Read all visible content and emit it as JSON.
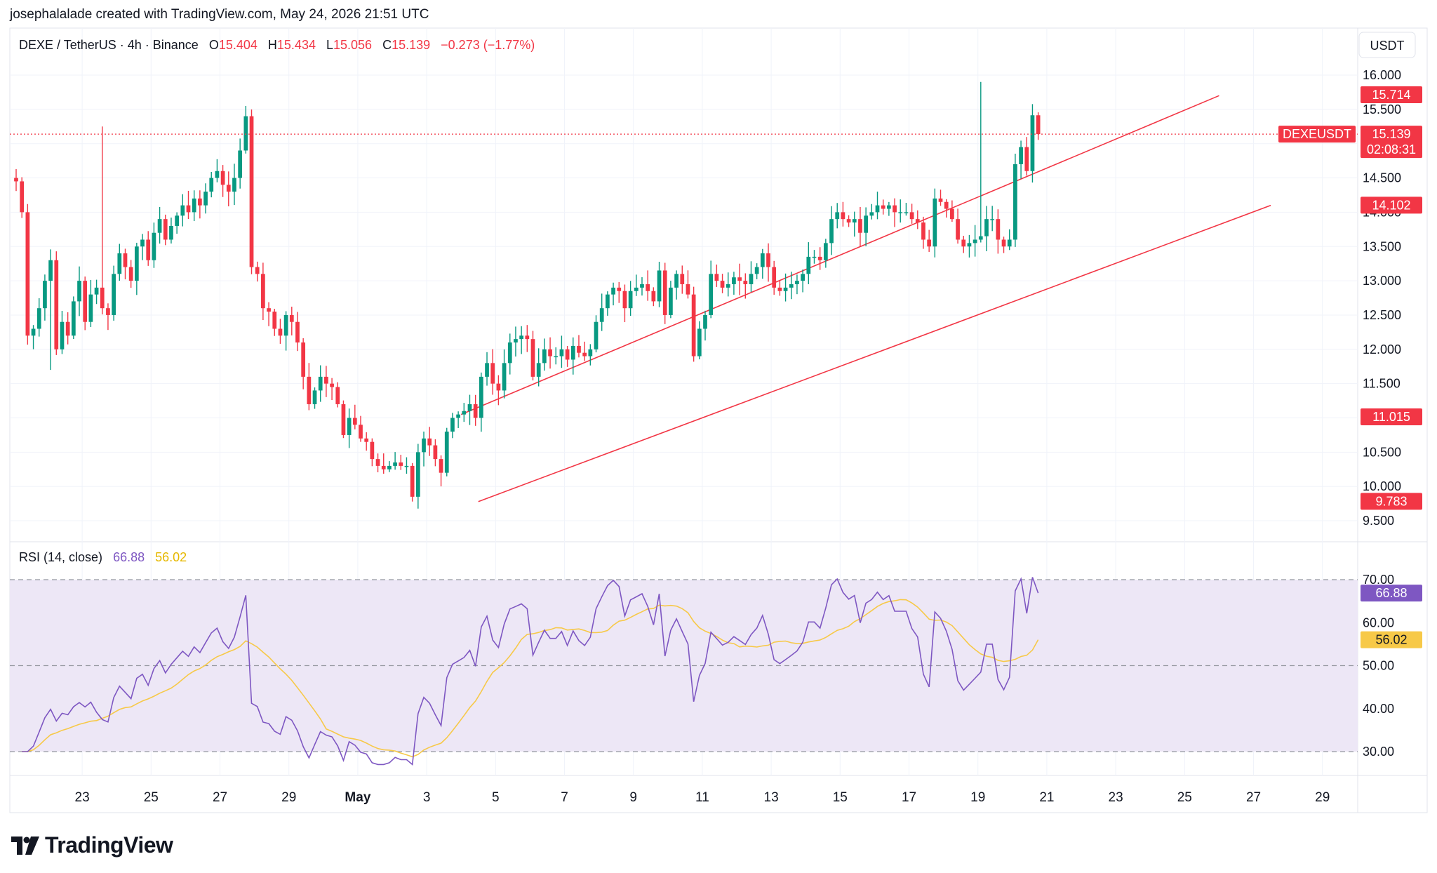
{
  "attribution": "josephalalade created with TradingView.com, May 24, 2026 21:51 UTC",
  "header": {
    "symbol": "DEXE / TetherUS · 4h · Binance",
    "o_label": "O",
    "o_value": "15.404",
    "h_label": "H",
    "h_value": "15.434",
    "l_label": "L",
    "l_value": "15.056",
    "c_label": "C",
    "c_value": "15.139",
    "change": "−0.273 (−1.77%)"
  },
  "currency": "USDT",
  "logo_text": "TradingView",
  "colors": {
    "up": "#089981",
    "down": "#f23645",
    "rsi": "#7e57c2",
    "rsi_ma": "#f7c948",
    "channel": "#f23645",
    "rsi_band": "#ede7f6"
  },
  "chart_data": [
    {
      "type": "candlestick",
      "title": "DEXE / TetherUS · 4h · Binance",
      "ylim": [
        9.25,
        16.25
      ],
      "y_ticks": [
        "9.500",
        "10.000",
        "10.500",
        "11.000",
        "11.500",
        "12.000",
        "12.500",
        "13.000",
        "13.500",
        "14.000",
        "14.500",
        "15.000",
        "15.500",
        "16.000"
      ],
      "x_ticks": [
        "23",
        "25",
        "27",
        "29",
        "May",
        "3",
        "5",
        "7",
        "9",
        "11",
        "13",
        "15",
        "17",
        "19",
        "21",
        "23",
        "25",
        "27",
        "29"
      ],
      "price_labels": [
        {
          "text": "15.714",
          "value": 15.714,
          "color": "#f23645"
        },
        {
          "text": "DEXEUSDT",
          "value": 15.139,
          "color": "#f23645"
        },
        {
          "text": "15.139",
          "value": 15.139,
          "color": "#f23645"
        },
        {
          "text": "02:08:31",
          "value": 15.139,
          "color": "#f23645"
        },
        {
          "text": "14.102",
          "value": 14.102,
          "color": "#f23645"
        },
        {
          "text": "11.015",
          "value": 11.015,
          "color": "#f23645"
        },
        {
          "text": "9.783",
          "value": 9.783,
          "color": "#f23645"
        }
      ],
      "last_price": 15.139,
      "channel": {
        "upper": [
          [
            "May 4",
            11.05
          ],
          [
            "May 26",
            15.7
          ]
        ],
        "lower": [
          [
            "May 4 12:00",
            9.78
          ],
          [
            "May 27 12:00",
            14.1
          ]
        ]
      },
      "closes": [
        14.45,
        14.0,
        12.2,
        12.3,
        12.6,
        13.0,
        13.3,
        12.0,
        12.4,
        12.2,
        12.7,
        13.0,
        12.4,
        12.8,
        12.9,
        12.6,
        12.5,
        13.1,
        13.4,
        13.2,
        13.0,
        13.5,
        13.6,
        13.3,
        13.7,
        13.9,
        13.6,
        13.8,
        13.95,
        14.1,
        14.0,
        14.2,
        14.1,
        14.3,
        14.5,
        14.6,
        14.4,
        14.3,
        14.5,
        14.9,
        15.4,
        13.2,
        13.1,
        12.6,
        12.55,
        12.3,
        12.2,
        12.5,
        12.4,
        12.1,
        11.6,
        11.2,
        11.4,
        11.6,
        11.5,
        11.45,
        11.2,
        10.75,
        11.0,
        10.9,
        10.7,
        10.65,
        10.4,
        10.3,
        10.25,
        10.3,
        10.35,
        10.3,
        10.3,
        9.85,
        10.5,
        10.7,
        10.6,
        10.4,
        10.2,
        10.8,
        11.0,
        11.05,
        11.1,
        11.2,
        11.0,
        11.6,
        11.8,
        11.5,
        11.4,
        11.8,
        12.1,
        12.15,
        12.2,
        12.15,
        11.6,
        11.8,
        12.0,
        11.9,
        11.9,
        12.0,
        11.85,
        12.05,
        11.95,
        11.9,
        12.0,
        12.4,
        12.6,
        12.8,
        12.9,
        12.85,
        12.6,
        12.85,
        12.9,
        12.95,
        12.85,
        12.7,
        13.15,
        12.5,
        12.9,
        13.1,
        12.95,
        12.8,
        11.9,
        12.3,
        12.5,
        13.1,
        13.0,
        12.9,
        12.95,
        13.05,
        13.0,
        12.95,
        13.1,
        13.2,
        13.4,
        13.2,
        12.9,
        12.85,
        12.9,
        12.95,
        13.0,
        13.1,
        13.35,
        13.35,
        13.3,
        13.55,
        13.9,
        14.0,
        13.9,
        13.85,
        13.9,
        13.7,
        13.95,
        14.0,
        14.1,
        14.05,
        14.1,
        14.0,
        14.0,
        14.0,
        13.9,
        13.85,
        13.6,
        13.5,
        14.2,
        14.15,
        14.05,
        13.9,
        13.6,
        13.5,
        13.55,
        13.6,
        13.65,
        13.9,
        13.9,
        13.6,
        13.5,
        13.6,
        14.7,
        14.95,
        14.6,
        15.414,
        15.139
      ],
      "notable": {
        "high": 15.9,
        "low": 9.78
      }
    },
    {
      "type": "line",
      "title": "RSI (14, close)",
      "series": [
        {
          "name": "RSI (14, close)",
          "last": "66.88",
          "color": "#7e57c2"
        },
        {
          "name": "RSI-based MA",
          "last": "56.02",
          "color": "#f7c948"
        }
      ],
      "ylim": [
        25,
        75
      ],
      "y_ticks": [
        "30.00",
        "40.00",
        "50.00",
        "60.00",
        "70.00"
      ],
      "bands": [
        30,
        50,
        70
      ],
      "last_values": {
        "rsi": 66.88,
        "ma": 56.02
      }
    }
  ]
}
